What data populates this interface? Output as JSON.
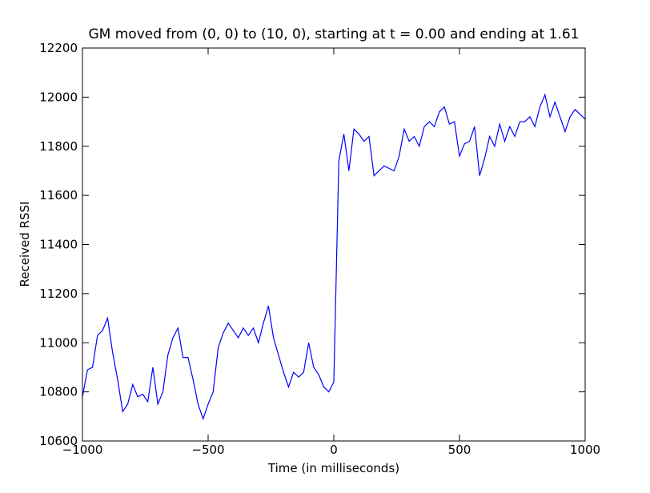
{
  "chart_data": {
    "type": "line",
    "title": "GM moved from (0, 0) to (10, 0), starting at t = 0.00 and ending at 1.61",
    "x_label": "Time (in milliseconds)",
    "y_label": "Received RSSI",
    "xlim": [
      -1000,
      1000
    ],
    "ylim": [
      10600,
      12200
    ],
    "xticks": [
      {
        "value": -1000,
        "label": "−1000"
      },
      {
        "value": -500,
        "label": "−500"
      },
      0,
      500,
      1000
    ],
    "yticks": [
      10600,
      10800,
      11000,
      11200,
      11400,
      11600,
      11800,
      12000,
      12200
    ],
    "grid": false,
    "x": [
      -1000,
      -980,
      -960,
      -940,
      -920,
      -900,
      -880,
      -860,
      -840,
      -820,
      -800,
      -780,
      -760,
      -740,
      -720,
      -700,
      -680,
      -660,
      -640,
      -620,
      -600,
      -580,
      -560,
      -540,
      -520,
      -500,
      -480,
      -460,
      -440,
      -420,
      -400,
      -380,
      -360,
      -340,
      -320,
      -300,
      -280,
      -260,
      -240,
      -220,
      -200,
      -180,
      -160,
      -140,
      -120,
      -100,
      -80,
      -60,
      -40,
      -20,
      0,
      20,
      40,
      60,
      80,
      100,
      120,
      140,
      160,
      180,
      200,
      220,
      240,
      260,
      280,
      300,
      320,
      340,
      360,
      380,
      400,
      420,
      440,
      460,
      480,
      500,
      520,
      540,
      560,
      580,
      600,
      620,
      640,
      660,
      680,
      700,
      720,
      740,
      760,
      780,
      800,
      820,
      840,
      860,
      880,
      900,
      920,
      940,
      960,
      980,
      1000
    ],
    "series": [
      {
        "color": "#0000ff",
        "values": [
          10780,
          10890,
          10900,
          11030,
          11050,
          11100,
          10960,
          10850,
          10720,
          10750,
          10830,
          10780,
          10790,
          10760,
          10900,
          10750,
          10800,
          10950,
          11020,
          11060,
          10940,
          10940,
          10850,
          10750,
          10690,
          10750,
          10800,
          10980,
          11040,
          11080,
          11050,
          11020,
          11060,
          11030,
          11060,
          11000,
          11080,
          11150,
          11020,
          10950,
          10880,
          10820,
          10880,
          10860,
          10880,
          11000,
          10900,
          10870,
          10820,
          10800,
          10840,
          11740,
          11850,
          11700,
          11870,
          11850,
          11820,
          11840,
          11680,
          11700,
          11720,
          11710,
          11700,
          11760,
          11870,
          11820,
          11840,
          11800,
          11880,
          11900,
          11880,
          11940,
          11960,
          11890,
          11900,
          11760,
          11810,
          11820,
          11880,
          11680,
          11750,
          11840,
          11800,
          11890,
          11820,
          11880,
          11840,
          11900,
          11900,
          11920,
          11880,
          11960,
          12010,
          11920,
          11980,
          11920,
          11860,
          11920,
          11950,
          11930,
          11910
        ]
      }
    ]
  }
}
